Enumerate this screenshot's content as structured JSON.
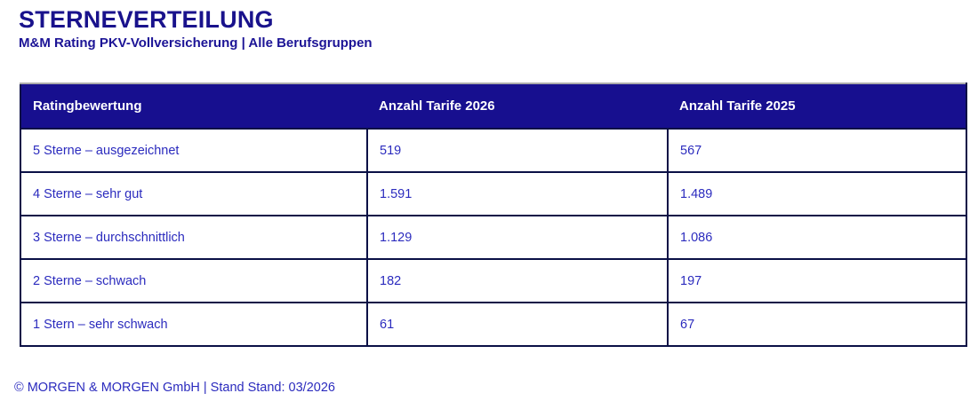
{
  "page": {
    "title": "STERNEVERTEILUNG",
    "subtitle": "M&M Rating PKV-Vollversicherung | Alle Berufsgruppen",
    "footer": "© MORGEN & MORGEN GmbH | Stand Stand: 03/2026"
  },
  "colors": {
    "header_bg": "#170F8F",
    "border": "#0A1046",
    "title_color": "#19128C",
    "subtitle_color": "#1C1496",
    "cell_text": "#2B2BBE",
    "header_text": "#FFFFFF",
    "top_line": "#ABABAB"
  },
  "table": {
    "columns": [
      "Ratingbewertung",
      "Anzahl Tarife 2026",
      "Anzahl Tarife 2025"
    ],
    "rows": [
      {
        "label": "5 Sterne – ausgezeichnet",
        "tarife_2026": "519",
        "tarife_2025": "567"
      },
      {
        "label": "4 Sterne – sehr gut",
        "tarife_2026": "1.591",
        "tarife_2025": "1.489"
      },
      {
        "label": "3 Sterne – durchschnittlich",
        "tarife_2026": "1.129",
        "tarife_2025": "1.086"
      },
      {
        "label": "2 Sterne – schwach",
        "tarife_2026": "182",
        "tarife_2025": "197"
      },
      {
        "label": "1 Stern – sehr schwach",
        "tarife_2026": "61",
        "tarife_2025": "67"
      }
    ]
  },
  "chart_data": {
    "type": "table",
    "title": "STERNEVERTEILUNG",
    "subtitle": "M&M Rating PKV-Vollversicherung | Alle Berufsgruppen",
    "columns": [
      "Ratingbewertung",
      "Anzahl Tarife 2026",
      "Anzahl Tarife 2025"
    ],
    "rows": [
      [
        "5 Sterne – ausgezeichnet",
        519,
        567
      ],
      [
        "4 Sterne – sehr gut",
        1591,
        1489
      ],
      [
        "3 Sterne – durchschnittlich",
        1129,
        1086
      ],
      [
        "2 Sterne – schwach",
        182,
        197
      ],
      [
        "1 Stern – sehr schwach",
        61,
        67
      ]
    ],
    "layout_hints": {
      "number_display": "German thousands separator, e.g. 1.591",
      "header_style": "dark blue band, white bold text, no internal column dividers",
      "grid": "2px dark navy borders between all body cells"
    }
  }
}
